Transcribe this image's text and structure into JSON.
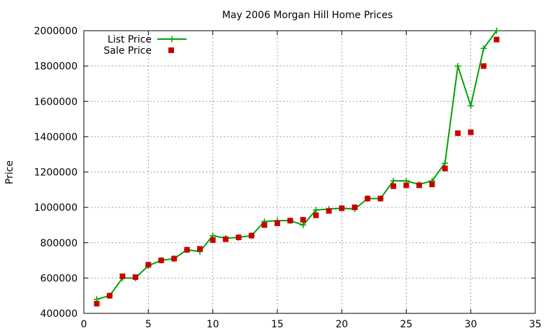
{
  "chart_data": {
    "type": "scatter",
    "title": "May 2006 Morgan Hill Home Prices",
    "xlabel": "",
    "ylabel": "Price",
    "xlim": [
      0,
      35
    ],
    "ylim": [
      400000,
      2000000
    ],
    "xticks": [
      "0",
      "5",
      "10",
      "15",
      "20",
      "25",
      "30",
      "35"
    ],
    "yticks": [
      "400000",
      "600000",
      "800000",
      "1000000",
      "1200000",
      "1400000",
      "1600000",
      "1800000",
      "2000000"
    ],
    "grid": true,
    "legend_position": "top-left",
    "series": [
      {
        "name": "List Price",
        "style": "linespoints",
        "marker": "plus",
        "color": "#00a000",
        "x": [
          1,
          2,
          3,
          4,
          5,
          6,
          7,
          8,
          9,
          10,
          11,
          12,
          13,
          14,
          15,
          16,
          17,
          18,
          19,
          20,
          21,
          22,
          23,
          24,
          25,
          26,
          27,
          28,
          29,
          30,
          31,
          32
        ],
        "y": [
          480000,
          500000,
          600000,
          600000,
          670000,
          700000,
          710000,
          760000,
          750000,
          840000,
          825000,
          830000,
          840000,
          920000,
          925000,
          925000,
          900000,
          985000,
          990000,
          995000,
          990000,
          1050000,
          1050000,
          1150000,
          1150000,
          1130000,
          1150000,
          1250000,
          1800000,
          1575000,
          1900000,
          2000000
        ]
      },
      {
        "name": "Sale Price",
        "style": "points",
        "marker": "square",
        "color": "#c80000",
        "x": [
          1,
          2,
          3,
          4,
          5,
          6,
          7,
          8,
          9,
          10,
          11,
          12,
          13,
          14,
          15,
          16,
          17,
          18,
          19,
          20,
          21,
          22,
          23,
          24,
          25,
          26,
          27,
          28,
          29,
          30,
          31,
          32
        ],
        "y": [
          455000,
          500000,
          610000,
          605000,
          675000,
          700000,
          710000,
          760000,
          765000,
          815000,
          820000,
          830000,
          840000,
          900000,
          910000,
          925000,
          930000,
          955000,
          980000,
          995000,
          1000000,
          1050000,
          1050000,
          1120000,
          1125000,
          1125000,
          1130000,
          1220000,
          1420000,
          1425000,
          1800000,
          1950000
        ]
      }
    ]
  }
}
